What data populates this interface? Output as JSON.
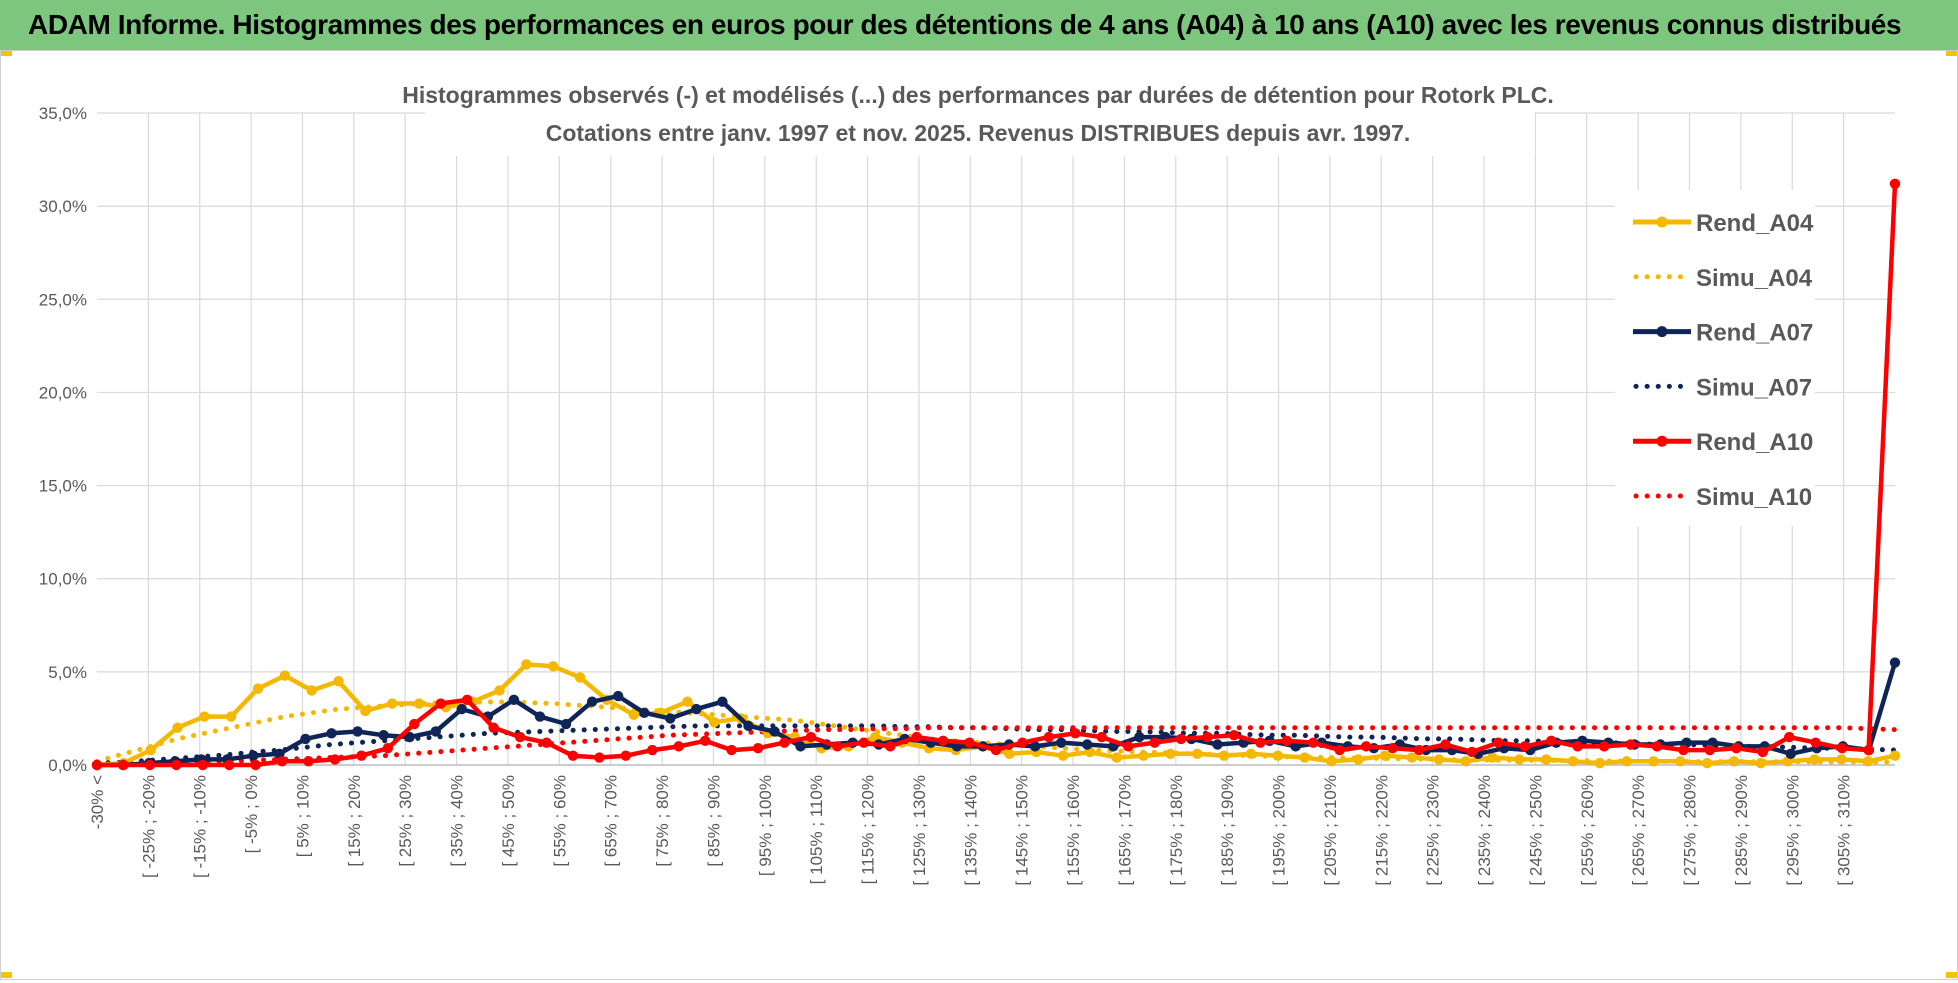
{
  "header": {
    "title": "ADAM Informe. Histogrammes des performances en euros pour des détentions de 4 ans (A04) à 10 ans (A10) avec les revenus connus distribués"
  },
  "chart_data": {
    "type": "line",
    "title": "Histogrammes observés (-) et modélisés (...) des performances par durées de détention pour Rotork PLC.",
    "subtitle": "Cotations entre janv. 1997 et nov. 2025. Revenus DISTRIBUES depuis avr. 1997.",
    "xlabel": "",
    "ylabel": "",
    "ylim": [
      0,
      35
    ],
    "yticks": [
      "0,0%",
      "5,0%",
      "10,0%",
      "15,0%",
      "20,0%",
      "25,0%",
      "30,0%",
      "35,0%"
    ],
    "grid": true,
    "legend_position": "right",
    "colors": {
      "A04": "#f5b800",
      "A07": "#0f2557",
      "A10": "#ff0000"
    },
    "x_labels": [
      "-30% <",
      "[ -25% ; -20%",
      "[ -15% ; -10%",
      "[ -5% ; 0%",
      "[ 5% ; 10%",
      "[ 15% ; 20%",
      "[ 25% ; 30%",
      "[ 35% ; 40%",
      "[ 45% ; 50%",
      "[ 55% ; 60%",
      "[ 65% ; 70%",
      "[ 75% ; 80%",
      "[ 85% ; 90%",
      "[ 95% ; 100%",
      "[ 105% ; 110%",
      "[ 115% ; 120%",
      "[ 125% ; 130%",
      "[ 135% ; 140%",
      "[ 145% ; 150%",
      "[ 155% ; 160%",
      "[ 165% ; 170%",
      "[ 175% ; 180%",
      "[ 185% ; 190%",
      "[ 195% ; 200%",
      "[ 205% ; 210%",
      "[ 215% ; 220%",
      "[ 225% ; 230%",
      "[ 235% ; 240%",
      "[ 245% ; 250%",
      "[ 255% ; 260%",
      "[ 265% ; 270%",
      "[ 275% ; 280%",
      "[ 285% ; 290%",
      "[ 295% ; 300%",
      "[ 305% ; 310%"
    ],
    "series": [
      {
        "name": "Rend_A04",
        "style": "solid",
        "color": "#f5b800",
        "values": [
          0,
          0.1,
          0.8,
          2.0,
          2.6,
          2.6,
          4.1,
          4.8,
          4.0,
          4.5,
          2.9,
          3.3,
          3.3,
          3.1,
          3.4,
          4.0,
          5.4,
          5.3,
          4.7,
          3.5,
          2.7,
          2.8,
          3.4,
          2.3,
          2.5,
          1.7,
          1.5,
          0.9,
          1.0,
          1.5,
          1.2,
          0.9,
          0.8,
          1.0,
          0.6,
          0.7,
          0.5,
          0.7,
          0.4,
          0.5,
          0.6,
          0.6,
          0.5,
          0.6,
          0.5,
          0.4,
          0.2,
          0.3,
          0.5,
          0.4,
          0.3,
          0.2,
          0.4,
          0.3,
          0.3,
          0.2,
          0.1,
          0.2,
          0.2,
          0.2,
          0.1,
          0.2,
          0.1,
          0.2,
          0.3,
          0.3,
          0.2,
          0.5
        ]
      },
      {
        "name": "Simu_A04",
        "style": "dotted",
        "color": "#f5b800",
        "values": [
          0.2,
          0.6,
          1.0,
          1.4,
          1.7,
          2.0,
          2.3,
          2.6,
          2.8,
          3.0,
          3.1,
          3.2,
          3.3,
          3.35,
          3.38,
          3.38,
          3.35,
          3.3,
          3.2,
          3.1,
          3.0,
          2.9,
          2.8,
          2.7,
          2.6,
          2.5,
          2.4,
          2.2,
          2.0,
          1.8,
          1.6,
          1.4,
          1.3,
          1.2,
          1.1,
          1.0,
          0.9,
          0.8,
          0.75,
          0.7,
          0.65,
          0.6,
          0.55,
          0.5,
          0.45,
          0.42,
          0.4,
          0.37,
          0.35,
          0.32,
          0.3,
          0.28,
          0.26,
          0.25,
          0.24,
          0.23,
          0.22,
          0.21,
          0.2,
          0.19,
          0.18,
          0.18,
          0.17,
          0.17,
          0.16,
          0.16,
          0.16,
          0.15
        ]
      },
      {
        "name": "Rend_A07",
        "style": "solid",
        "color": "#0f2557",
        "values": [
          0,
          0,
          0.1,
          0.2,
          0.3,
          0.3,
          0.5,
          0.6,
          1.4,
          1.7,
          1.8,
          1.6,
          1.5,
          1.8,
          3.0,
          2.6,
          3.5,
          2.6,
          2.2,
          3.4,
          3.7,
          2.8,
          2.5,
          3.0,
          3.4,
          2.1,
          1.8,
          1.0,
          1.1,
          1.2,
          1.1,
          1.4,
          1.2,
          1.0,
          1.0,
          1.1,
          1.0,
          1.2,
          1.1,
          1.0,
          1.5,
          1.5,
          1.4,
          1.1,
          1.2,
          1.3,
          1.0,
          1.2,
          1.0,
          0.9,
          1.1,
          0.8,
          0.8,
          0.6,
          0.9,
          0.8,
          1.2,
          1.3,
          1.2,
          1.1,
          1.1,
          1.2,
          1.2,
          1.0,
          1.0,
          0.6,
          0.9,
          1.0,
          0.8,
          5.5
        ]
      },
      {
        "name": "Simu_A07",
        "style": "dotted",
        "color": "#0f2557",
        "values": [
          0.1,
          0.15,
          0.25,
          0.35,
          0.45,
          0.55,
          0.7,
          0.8,
          0.95,
          1.1,
          1.2,
          1.3,
          1.4,
          1.5,
          1.6,
          1.7,
          1.75,
          1.8,
          1.85,
          1.9,
          1.95,
          2.0,
          2.05,
          2.1,
          2.1,
          2.1,
          2.1,
          2.1,
          2.1,
          2.1,
          2.1,
          2.05,
          2.05,
          2.0,
          2.0,
          1.95,
          1.9,
          1.9,
          1.85,
          1.8,
          1.8,
          1.75,
          1.7,
          1.7,
          1.65,
          1.6,
          1.6,
          1.55,
          1.5,
          1.5,
          1.45,
          1.4,
          1.4,
          1.35,
          1.3,
          1.3,
          1.25,
          1.2,
          1.2,
          1.15,
          1.1,
          1.1,
          1.05,
          1.0,
          1.0,
          0.95,
          0.9,
          0.9,
          0.85,
          0.8
        ]
      },
      {
        "name": "Rend_A10",
        "style": "solid",
        "color": "#ff0000",
        "values": [
          0,
          0,
          0,
          0,
          0,
          0,
          0,
          0.2,
          0.2,
          0.3,
          0.5,
          0.9,
          2.2,
          3.3,
          3.5,
          2.0,
          1.5,
          1.2,
          0.5,
          0.4,
          0.5,
          0.8,
          1.0,
          1.3,
          0.8,
          0.9,
          1.2,
          1.5,
          1.0,
          1.2,
          1.0,
          1.5,
          1.3,
          1.2,
          0.8,
          1.2,
          1.5,
          1.7,
          1.5,
          1.0,
          1.2,
          1.4,
          1.5,
          1.6,
          1.2,
          1.3,
          1.2,
          0.8,
          1.0,
          0.9,
          0.8,
          1.1,
          0.7,
          1.2,
          1.0,
          1.3,
          1.0,
          1.0,
          1.1,
          1.0,
          0.8,
          0.8,
          0.9,
          0.7,
          1.5,
          1.2,
          0.9,
          0.8,
          31.2
        ]
      },
      {
        "name": "Simu_A10",
        "style": "dotted",
        "color": "#ff0000",
        "values": [
          0.05,
          0.07,
          0.1,
          0.13,
          0.17,
          0.2,
          0.25,
          0.3,
          0.35,
          0.4,
          0.45,
          0.5,
          0.6,
          0.7,
          0.8,
          0.9,
          1.0,
          1.1,
          1.2,
          1.3,
          1.4,
          1.5,
          1.6,
          1.65,
          1.7,
          1.75,
          1.8,
          1.85,
          1.9,
          1.9,
          1.95,
          1.95,
          2.0,
          2.0,
          2.0,
          2.0,
          2.0,
          2.0,
          2.0,
          2.0,
          2.0,
          2.0,
          2.0,
          2.0,
          2.0,
          2.0,
          2.0,
          2.0,
          2.0,
          2.0,
          2.0,
          2.0,
          2.0,
          2.0,
          2.0,
          2.0,
          2.0,
          2.0,
          2.0,
          2.0,
          2.0,
          2.0,
          2.0,
          2.0,
          2.0,
          2.0,
          2.0,
          2.0,
          1.95,
          1.9
        ]
      }
    ]
  }
}
